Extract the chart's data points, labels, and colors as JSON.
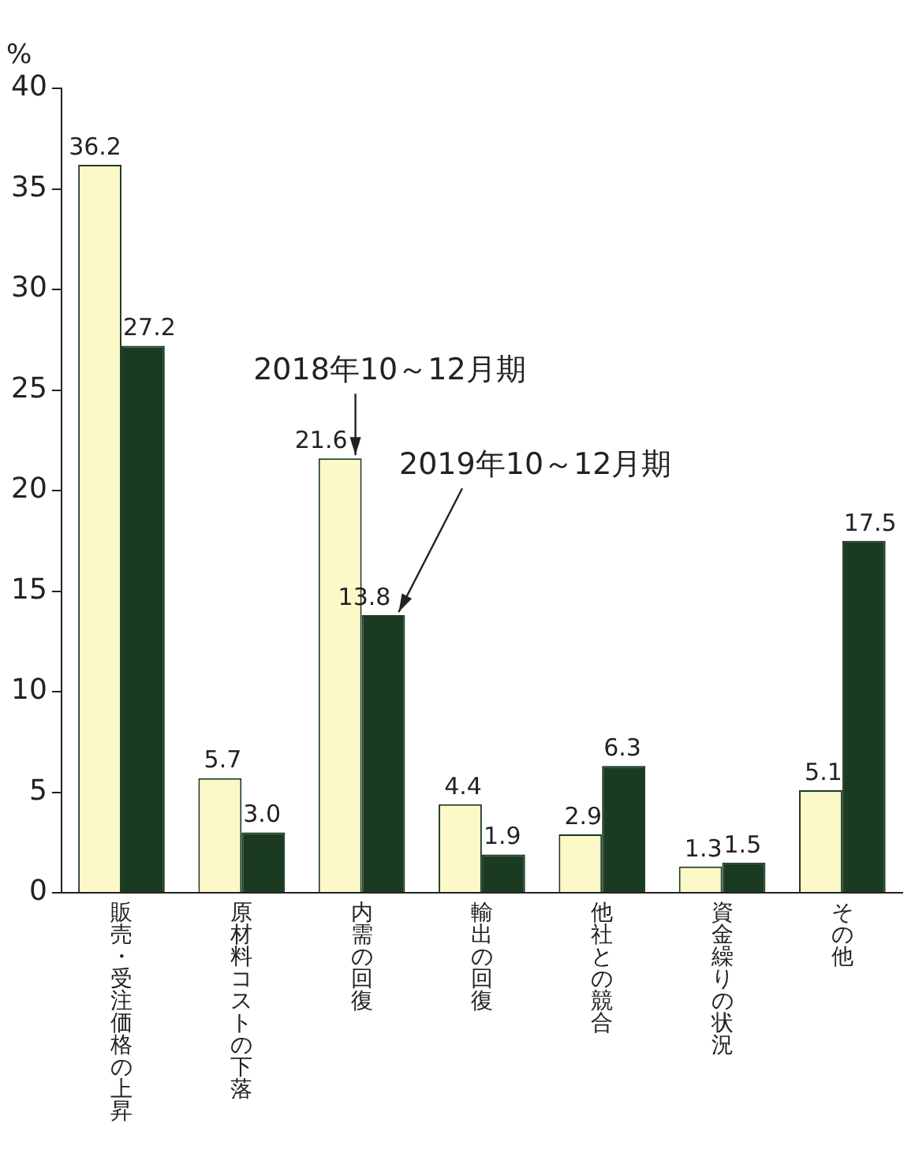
{
  "chart_data": {
    "type": "bar",
    "ylabel": "%",
    "categories": [
      "販売・受注価格の上昇",
      "原材料コストの下落",
      "内需の回復",
      "輸出の回復",
      "他社との競合",
      "資金繰りの状況",
      "その他"
    ],
    "series": [
      {
        "name": "2018年10～12月期",
        "color": "#fdf8c8",
        "values": [
          36.2,
          5.7,
          21.6,
          4.4,
          2.9,
          1.3,
          5.1
        ],
        "value_labels": [
          "36.2",
          "5.7",
          "21.6",
          "4.4",
          "2.9",
          "1.3",
          "5.1"
        ]
      },
      {
        "name": "2019年10～12月期",
        "color": "#1a3a22",
        "values": [
          27.2,
          3.0,
          13.8,
          1.9,
          6.3,
          1.5,
          17.5
        ],
        "value_labels": [
          "27.2",
          "3.0",
          "13.8",
          "1.9",
          "6.3",
          "1.5",
          "17.5"
        ]
      }
    ],
    "ylim": [
      0,
      40
    ],
    "yticks": [
      0,
      5,
      10,
      15,
      20,
      25,
      30,
      35,
      40
    ],
    "grid": false,
    "legend": false
  }
}
